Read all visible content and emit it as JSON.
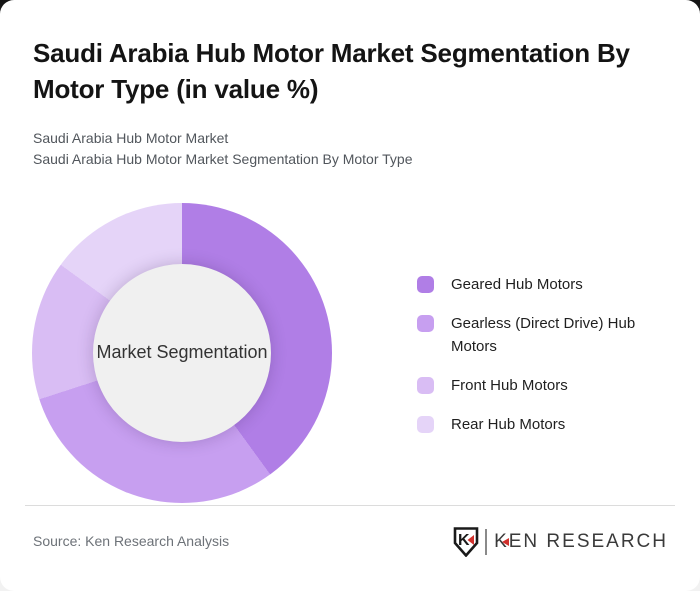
{
  "page": {
    "title": "Saudi Arabia Hub Motor Market Segmentation By Motor Type (in value %)",
    "subtitle_line1": "Saudi Arabia Hub Motor Market",
    "subtitle_line2": "Saudi Arabia Hub Motor Market Segmentation By Motor Type"
  },
  "chart_data": {
    "type": "pie",
    "variant": "donut",
    "title": "Saudi Arabia Hub Motor Market Segmentation By Motor Type (in value %)",
    "center_label": "Market Segmentation",
    "categories": [
      "Geared Hub Motors",
      "Gearless (Direct Drive) Hub Motors",
      "Front Hub Motors",
      "Rear Hub Motors"
    ],
    "values": [
      40,
      30,
      15,
      15
    ],
    "unit": "% of market value (estimated from arc angles)",
    "colors": [
      "#b07ee6",
      "#c79ff0",
      "#d9bdf4",
      "#e5d4f8"
    ],
    "start_angle_deg": 0,
    "direction": "clockwise",
    "hole_color": "#f0f0f0",
    "legend_position": "right"
  },
  "footer": {
    "source_text": "Source: Ken Research Analysis",
    "logo_monogram": "K",
    "logo_text": "KEN RESEARCH",
    "logo_accent_color": "#d0312d"
  }
}
